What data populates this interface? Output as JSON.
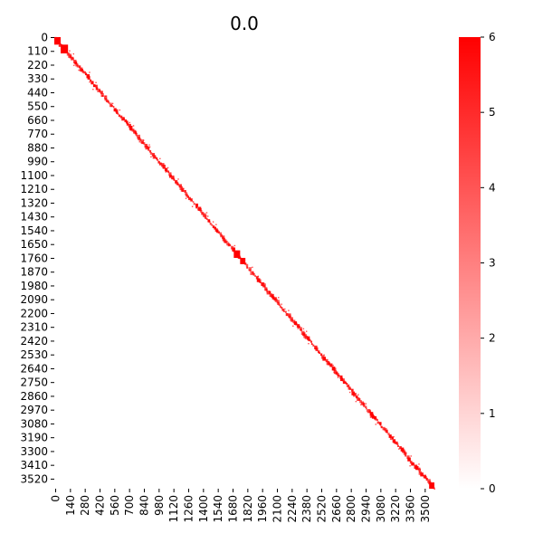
{
  "chart_data": {
    "type": "heatmap",
    "title": "0.0",
    "xlabel": "",
    "ylabel": "",
    "matrix_size": 3600,
    "x_ticks": [
      0,
      140,
      280,
      420,
      560,
      700,
      840,
      980,
      1120,
      1260,
      1400,
      1540,
      1680,
      1820,
      1960,
      2100,
      2240,
      2380,
      2520,
      2660,
      2800,
      2940,
      3080,
      3220,
      3360,
      3500
    ],
    "y_ticks": [
      0,
      110,
      220,
      330,
      440,
      550,
      660,
      770,
      880,
      990,
      1100,
      1210,
      1320,
      1430,
      1540,
      1650,
      1760,
      1870,
      1980,
      2090,
      2200,
      2310,
      2420,
      2530,
      2640,
      2750,
      2860,
      2970,
      3080,
      3190,
      3300,
      3410,
      3520
    ],
    "colorbar": {
      "min": 0,
      "max": 6,
      "ticks": [
        0,
        1,
        2,
        3,
        4,
        5,
        6
      ],
      "color_low": "#ffffff",
      "color_high": "#ff0000"
    },
    "pattern": "nonzero values concentrated along the main diagonal",
    "diagonal_blocks": [
      {
        "start": 0,
        "end": 60,
        "value": 6
      },
      {
        "start": 60,
        "end": 130,
        "value": 6
      },
      {
        "start": 1700,
        "end": 1760,
        "value": 6
      },
      {
        "start": 1760,
        "end": 1810,
        "value": 6
      },
      {
        "start": 3550,
        "end": 3600,
        "value": 6
      }
    ],
    "grid": false,
    "legend": "colorbar-right"
  }
}
